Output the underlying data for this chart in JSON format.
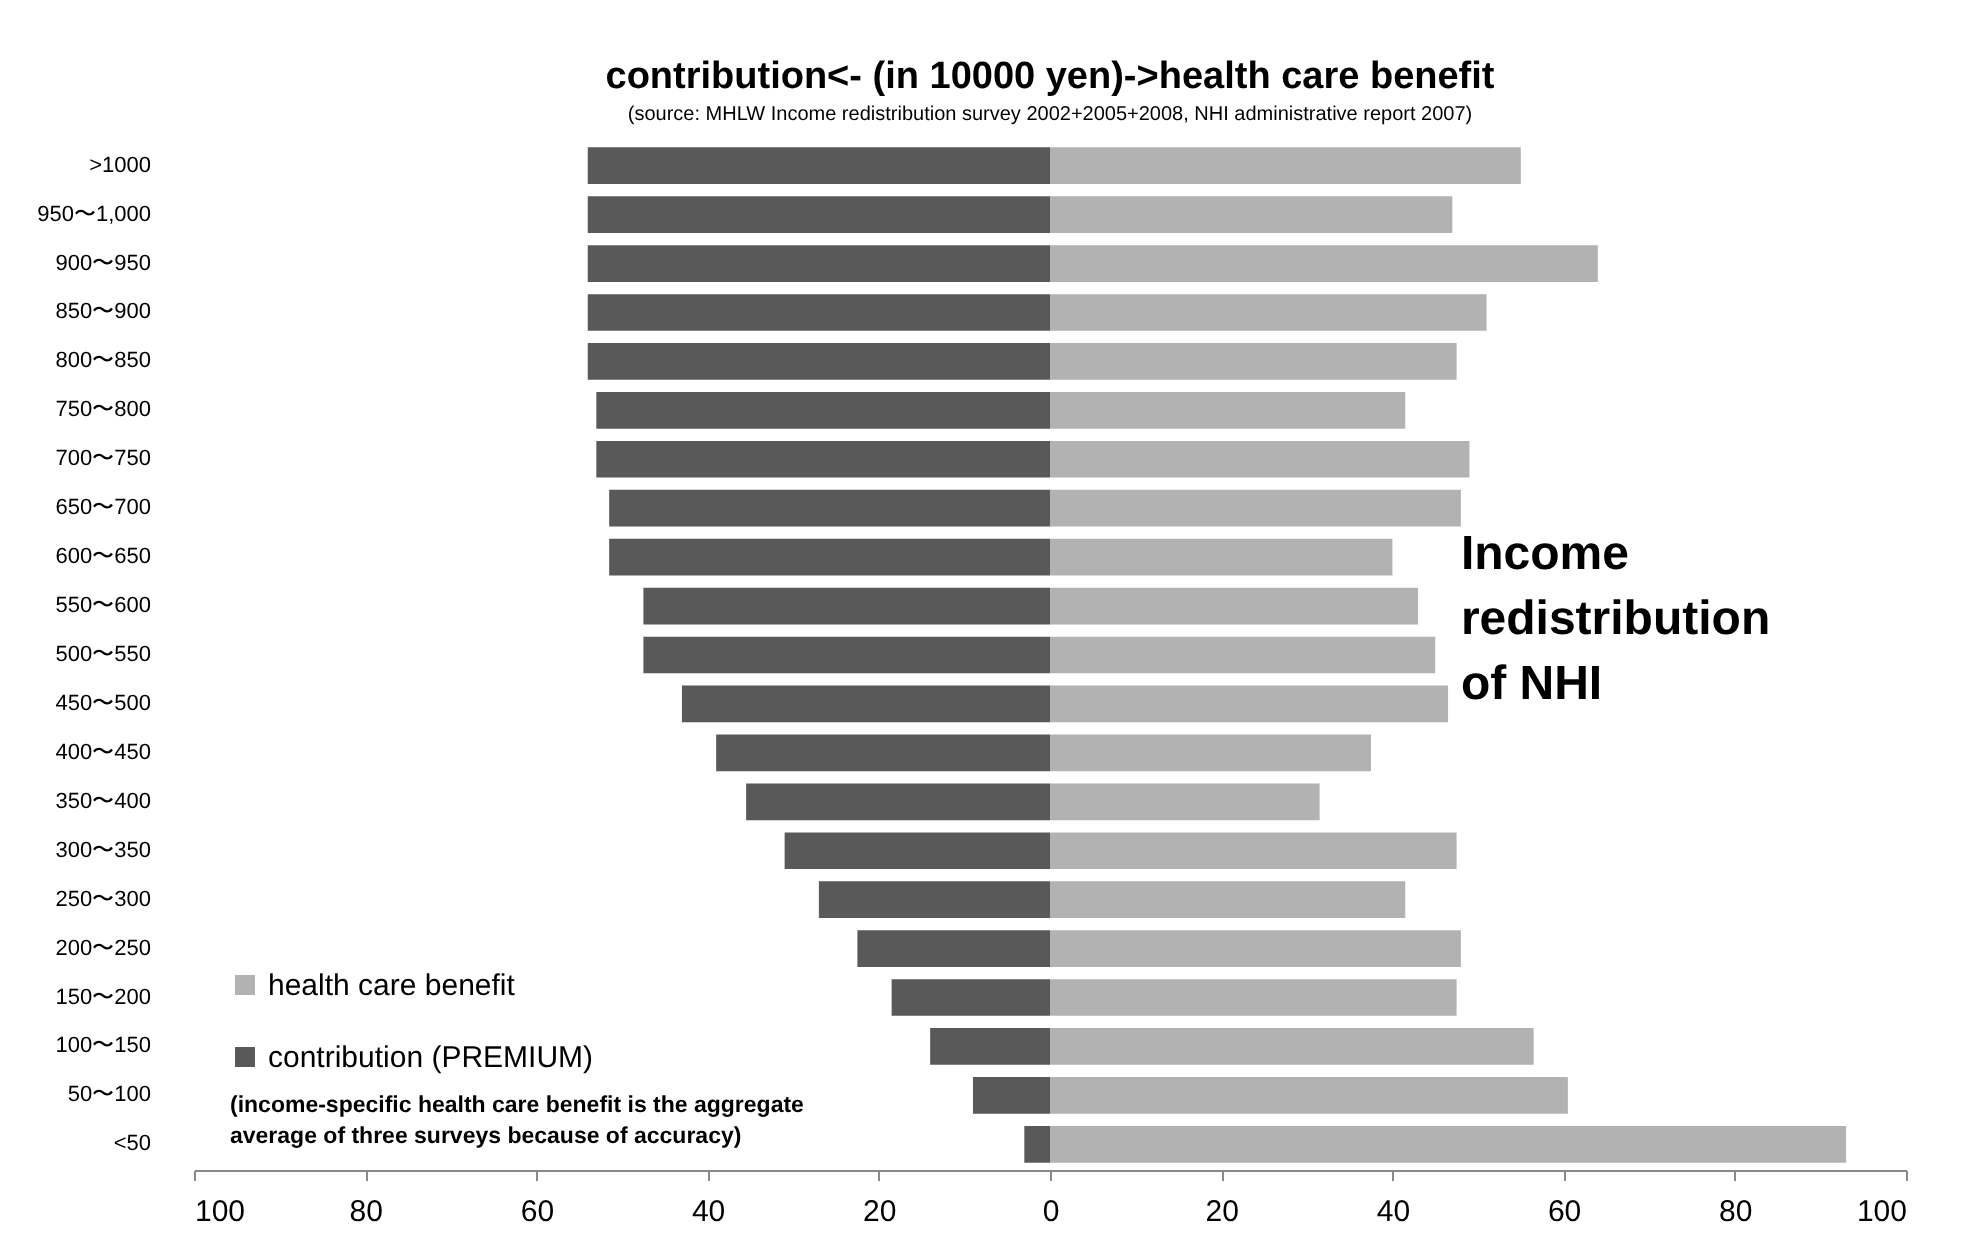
{
  "chart_data": {
    "type": "bar",
    "orientation": "horizontal",
    "title": "contribution<- (in 10000 yen)->health care benefit",
    "subtitle": "(source: MHLW Income redistribution survey 2002+2005+2008, NHI administrative report 2007)",
    "categories": [
      ">1000",
      "950〜1,000",
      "900〜950",
      "850〜900",
      "800〜850",
      "750〜800",
      "700〜750",
      "650〜700",
      "600〜650",
      "550〜600",
      "500〜550",
      "450〜500",
      "400〜450",
      "350〜400",
      "300〜350",
      "250〜300",
      "200〜250",
      "150〜200",
      "100〜150",
      "50〜100",
      "<50"
    ],
    "series": [
      {
        "name": "health care benefit",
        "color": "#b2b2b2",
        "values": [
          55,
          47,
          64,
          51,
          47.5,
          41.5,
          49,
          48,
          40,
          43,
          45,
          46.5,
          37.5,
          31.5,
          47.5,
          41.5,
          48,
          47.5,
          56.5,
          60.5,
          93
        ]
      },
      {
        "name": "contribution (PREMIUM)",
        "color": "#595959",
        "values": [
          -54,
          -54,
          -54,
          -54,
          -54,
          -53,
          -53,
          -51.5,
          -51.5,
          -47.5,
          -47.5,
          -43,
          -39,
          -35.5,
          -31,
          -27,
          -22.5,
          -18.5,
          -14,
          -9,
          -3
        ]
      }
    ],
    "xlim": [
      -100,
      100
    ],
    "xticks": [
      {
        "value": -100,
        "label": "100"
      },
      {
        "value": -80,
        "label": "80"
      },
      {
        "value": -60,
        "label": "60"
      },
      {
        "value": -40,
        "label": "40"
      },
      {
        "value": -20,
        "label": "20"
      },
      0,
      20,
      40,
      60,
      80,
      100
    ],
    "grid": false,
    "stacked": true,
    "legend": "bottom left",
    "annotations": [
      "Income\nredistribution\n of NHI",
      "(income-specific health care benefit is the aggregate\naverage of three surveys because of accuracy)"
    ]
  }
}
